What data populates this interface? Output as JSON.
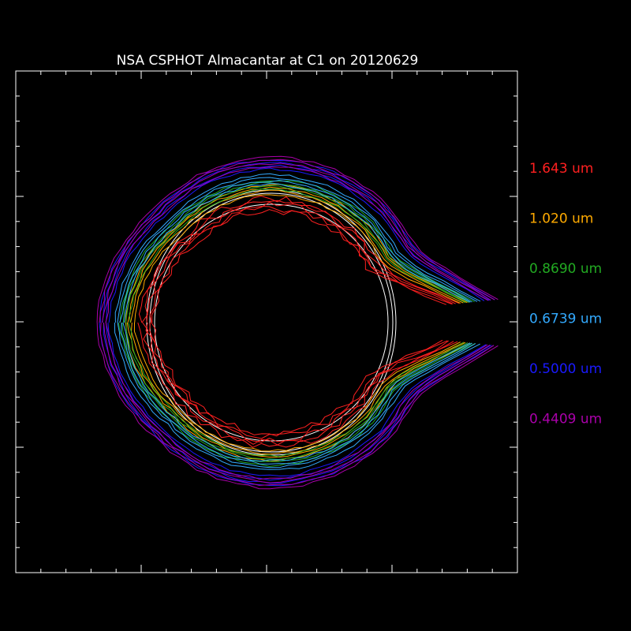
{
  "chart_data": {
    "type": "line",
    "title": "NSA CSPHOT Almacantar at C1 on 20120629",
    "xlabel": "",
    "ylabel": "",
    "axes_ticks_labeled": false,
    "grid": false,
    "background": "#000000",
    "frame_color": "#ffffff",
    "legend_placement": "right",
    "series": [
      {
        "name": "1.643 um",
        "color": "#ff2020",
        "values": [
          47,
          48,
          47,
          45,
          48,
          46,
          45,
          44
        ]
      },
      {
        "name": "1.020 um",
        "color": "#ffaa00",
        "values": [
          52,
          54,
          53,
          51,
          55,
          52,
          51,
          50
        ]
      },
      {
        "name": "0.8690 um",
        "color": "#22aa22",
        "values": [
          54,
          56,
          55,
          53,
          57,
          54,
          53,
          52
        ]
      },
      {
        "name": "0.6739 um",
        "color": "#33aaff",
        "values": [
          56,
          58,
          57,
          55,
          59,
          56,
          55,
          54
        ]
      },
      {
        "name": "0.5000 um",
        "color": "#1a1aff",
        "values": [
          62,
          64,
          63,
          61,
          65,
          62,
          61,
          60
        ]
      },
      {
        "name": "0.4409 um",
        "color": "#aa00aa",
        "values": [
          63,
          65,
          64,
          62,
          66,
          63,
          62,
          61
        ]
      }
    ]
  }
}
